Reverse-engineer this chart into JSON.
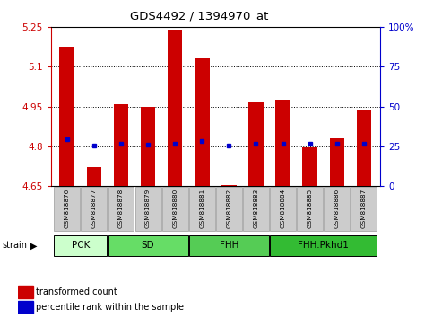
{
  "title": "GDS4492 / 1394970_at",
  "samples": [
    "GSM818876",
    "GSM818877",
    "GSM818878",
    "GSM818879",
    "GSM818880",
    "GSM818881",
    "GSM818882",
    "GSM818883",
    "GSM818884",
    "GSM818885",
    "GSM818886",
    "GSM818887"
  ],
  "transformed_counts": [
    5.175,
    4.72,
    4.96,
    4.95,
    5.24,
    5.13,
    4.655,
    4.965,
    4.975,
    4.795,
    4.83,
    4.94
  ],
  "percentile_values": [
    4.825,
    4.802,
    4.808,
    4.806,
    4.808,
    4.82,
    4.803,
    4.808,
    4.808,
    4.808,
    4.808,
    4.808
  ],
  "ylim_left": [
    4.65,
    5.25
  ],
  "ylim_right": [
    0,
    100
  ],
  "right_ticks": [
    0,
    25,
    50,
    75,
    100
  ],
  "right_tick_labels": [
    "0",
    "25",
    "50",
    "75",
    "100%"
  ],
  "left_ticks": [
    4.65,
    4.8,
    4.95,
    5.1,
    5.25
  ],
  "left_tick_labels": [
    "4.65",
    "4.8",
    "4.95",
    "5.1",
    "5.25"
  ],
  "grid_lines": [
    4.8,
    4.95,
    5.1
  ],
  "bar_bottom": 4.65,
  "bar_color": "#cc0000",
  "dot_color": "#0000cc",
  "groups": [
    {
      "label": "PCK",
      "start": 0,
      "end": 1,
      "color": "#ccffcc"
    },
    {
      "label": "SD",
      "start": 2,
      "end": 4,
      "color": "#66dd66"
    },
    {
      "label": "FHH",
      "start": 5,
      "end": 7,
      "color": "#55cc55"
    },
    {
      "label": "FHH.Pkhd1",
      "start": 8,
      "end": 11,
      "color": "#33bb33"
    }
  ],
  "legend_red": "transformed count",
  "legend_blue": "percentile rank within the sample",
  "tick_color_left": "#cc0000",
  "tick_color_right": "#0000cc",
  "fig_bg": "#ffffff",
  "box_color": "#cccccc",
  "box_edge": "#999999"
}
